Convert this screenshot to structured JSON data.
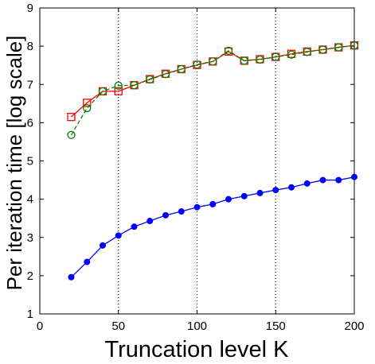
{
  "chart_data": {
    "type": "line",
    "title": "",
    "xlabel": "Truncation level K",
    "ylabel": "Per iteration time [log scale]",
    "xlim": [
      0,
      200
    ],
    "ylim": [
      1,
      9
    ],
    "xticks": [
      "0",
      "50",
      "100",
      "150",
      "200"
    ],
    "yticks": [
      "1",
      "2",
      "3",
      "4",
      "5",
      "6",
      "7",
      "8",
      "9"
    ],
    "grid": "vertical dotted at x = 50, 100, 150",
    "legend": "none",
    "series": [
      {
        "color": "#ff0000",
        "marker": "square",
        "line": "solid",
        "x": [
          20,
          30,
          40,
          50,
          60,
          70,
          80,
          90,
          100,
          110,
          120,
          130,
          140,
          150,
          160,
          170,
          180,
          190,
          200
        ],
        "values": [
          6.15,
          6.52,
          6.82,
          6.82,
          6.98,
          7.14,
          7.28,
          7.4,
          7.51,
          7.6,
          7.86,
          7.62,
          7.66,
          7.72,
          7.8,
          7.86,
          7.91,
          7.97,
          8.02
        ]
      },
      {
        "color": "#008000",
        "marker": "circle",
        "line": "dashed",
        "x": [
          20,
          30,
          40,
          50,
          60,
          70,
          80,
          90,
          100,
          110,
          120,
          130,
          140,
          150,
          160,
          170,
          180,
          190,
          200
        ],
        "values": [
          5.68,
          6.38,
          6.82,
          6.97,
          6.98,
          7.13,
          7.27,
          7.4,
          7.52,
          7.6,
          7.88,
          7.62,
          7.65,
          7.72,
          7.78,
          7.85,
          7.91,
          7.97,
          8.02
        ]
      },
      {
        "color": "#0000ff",
        "marker": "filled-circle",
        "line": "solid",
        "x": [
          20,
          30,
          40,
          50,
          60,
          70,
          80,
          90,
          100,
          110,
          120,
          130,
          140,
          150,
          160,
          170,
          180,
          190,
          200
        ],
        "values": [
          1.96,
          2.36,
          2.79,
          3.05,
          3.28,
          3.43,
          3.58,
          3.68,
          3.79,
          3.87,
          4.0,
          4.08,
          4.16,
          4.24,
          4.31,
          4.41,
          4.5,
          4.5,
          4.58
        ]
      }
    ]
  }
}
